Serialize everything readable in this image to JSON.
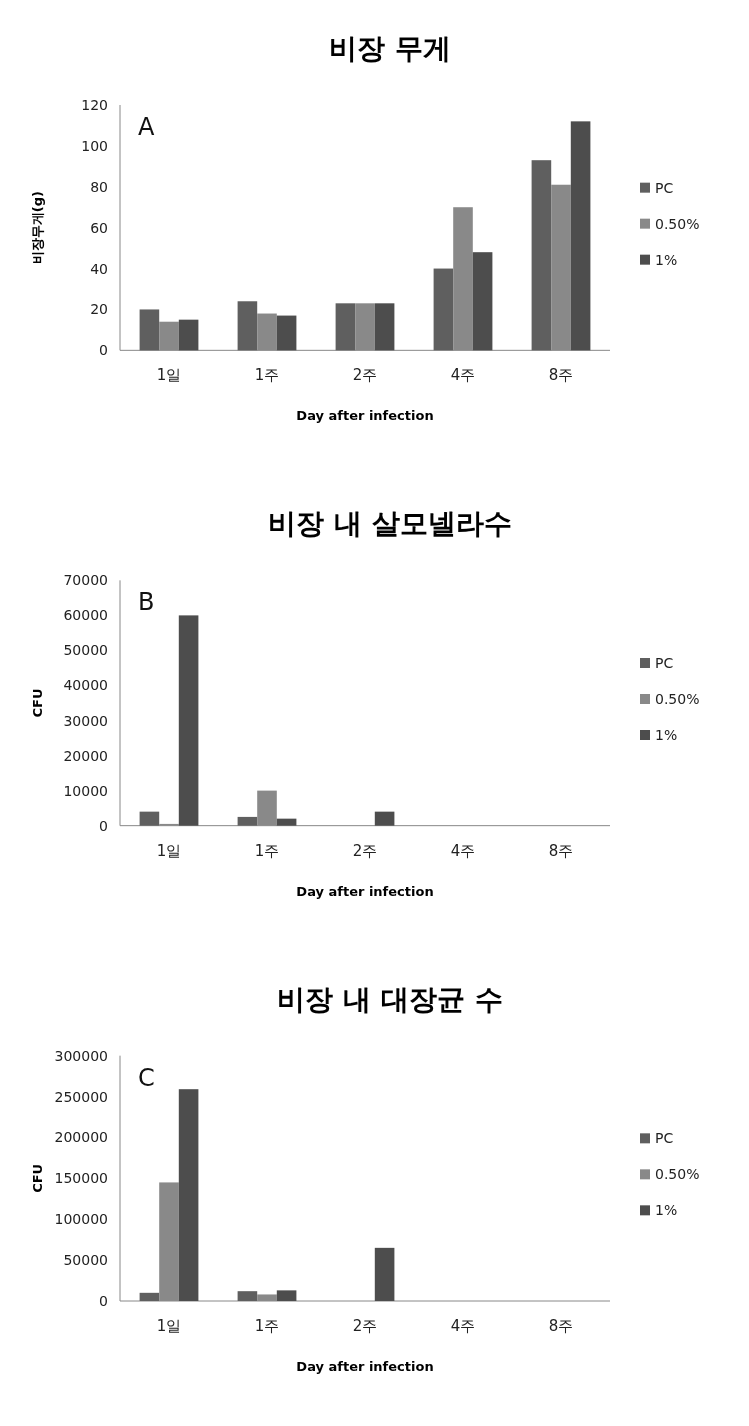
{
  "chart_data": [
    {
      "type": "bar",
      "title": "비장 무게",
      "xlabel": "Day after infection",
      "ylabel": "비장무게(g)",
      "annotations": [
        "A"
      ],
      "categories": [
        "1일",
        "1주",
        "2주",
        "4주",
        "8주"
      ],
      "ylim": [
        0,
        120
      ],
      "yticks": [
        0,
        20,
        40,
        60,
        80,
        100,
        120
      ],
      "legend": "right",
      "grid": false,
      "series": [
        {
          "name": "PC",
          "color": "#5f5f5f",
          "values": [
            20,
            24,
            23,
            40,
            93
          ]
        },
        {
          "name": "0.50%",
          "color": "#898989",
          "values": [
            14,
            18,
            23,
            70,
            81
          ]
        },
        {
          "name": "1%",
          "color": "#4d4d4d",
          "values": [
            15,
            17,
            23,
            48,
            112
          ]
        }
      ]
    },
    {
      "type": "bar",
      "title": "비장 내 살모넬라수",
      "xlabel": "Day after infection",
      "ylabel": "CFU",
      "annotations": [
        "B"
      ],
      "categories": [
        "1일",
        "1주",
        "2주",
        "4주",
        "8주"
      ],
      "ylim": [
        0,
        70000
      ],
      "yticks": [
        0,
        10000,
        20000,
        30000,
        40000,
        50000,
        60000,
        70000
      ],
      "legend": "right",
      "grid": false,
      "series": [
        {
          "name": "PC",
          "color": "#5f5f5f",
          "values": [
            4000,
            2500,
            0,
            0,
            0
          ]
        },
        {
          "name": "0.50%",
          "color": "#898989",
          "values": [
            500,
            10000,
            0,
            0,
            0
          ]
        },
        {
          "name": "1%",
          "color": "#4d4d4d",
          "values": [
            60000,
            2000,
            4000,
            0,
            0
          ]
        }
      ]
    },
    {
      "type": "bar",
      "title": "비장 내 대장균 수",
      "xlabel": "Day after infection",
      "ylabel": "CFU",
      "annotations": [
        "C"
      ],
      "categories": [
        "1일",
        "1주",
        "2주",
        "4주",
        "8주"
      ],
      "ylim": [
        0,
        300000
      ],
      "yticks": [
        0,
        50000,
        100000,
        150000,
        200000,
        250000,
        300000
      ],
      "legend": "right",
      "grid": false,
      "series": [
        {
          "name": "PC",
          "color": "#5f5f5f",
          "values": [
            10000,
            12000,
            0,
            0,
            0
          ]
        },
        {
          "name": "0.50%",
          "color": "#898989",
          "values": [
            145000,
            8000,
            0,
            0,
            0
          ]
        },
        {
          "name": "1%",
          "color": "#4d4d4d",
          "values": [
            259000,
            13000,
            65000,
            0,
            0
          ]
        }
      ]
    }
  ]
}
